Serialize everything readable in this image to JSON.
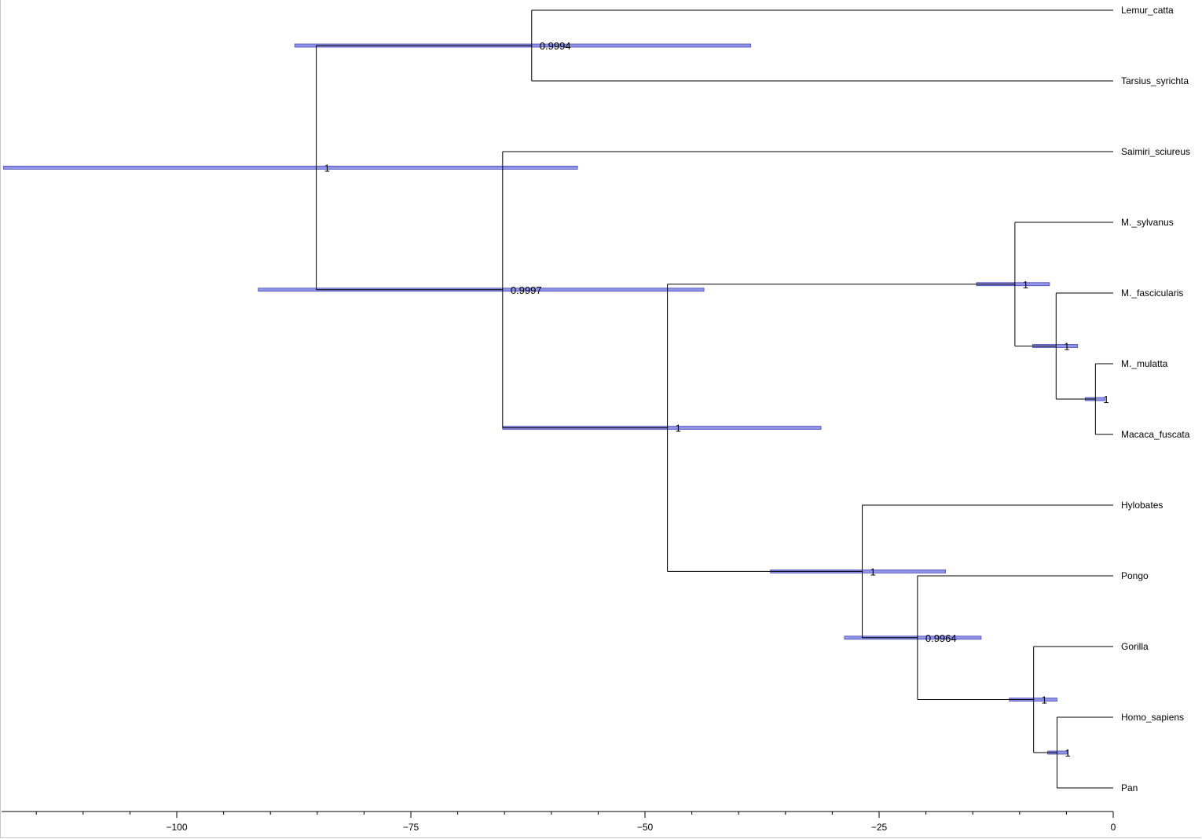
{
  "chart_data": {
    "type": "phylogenetic-tree",
    "x_axis": {
      "ticks": [
        -100,
        -75,
        -50,
        -25,
        0
      ],
      "tick_labels": [
        "−100",
        "−75",
        "−50",
        "−25",
        "0"
      ],
      "minor_step": 5,
      "range": [
        -118.7,
        0
      ]
    },
    "tips": [
      {
        "id": "t1",
        "name": "Lemur_catta"
      },
      {
        "id": "t2",
        "name": "Tarsius_syrichta"
      },
      {
        "id": "t3",
        "name": "Saimiri_sciureus"
      },
      {
        "id": "t4",
        "name": "M._sylvanus"
      },
      {
        "id": "t5",
        "name": "M._fascicularis"
      },
      {
        "id": "t6",
        "name": "M._mulatta"
      },
      {
        "id": "t7",
        "name": "Macaca_fuscata"
      },
      {
        "id": "t8",
        "name": "Hylobates"
      },
      {
        "id": "t9",
        "name": "Pongo"
      },
      {
        "id": "t10",
        "name": "Gorilla"
      },
      {
        "id": "t11",
        "name": "Homo_sapiens"
      },
      {
        "id": "t12",
        "name": "Pan"
      }
    ],
    "nodes": [
      {
        "id": "root",
        "age": -85.1,
        "hpd": [
          -118.5,
          -57.2
        ],
        "support": "1",
        "children": [
          "n1",
          "n2"
        ]
      },
      {
        "id": "n1",
        "age": -62.1,
        "hpd": [
          -87.4,
          -38.7
        ],
        "support": "0.9994",
        "children": [
          "t1",
          "t2"
        ]
      },
      {
        "id": "n2",
        "age": -65.2,
        "hpd": [
          -91.3,
          -43.7
        ],
        "support": "0.9997",
        "children": [
          "t3",
          "n3"
        ]
      },
      {
        "id": "n3",
        "age": -47.6,
        "hpd": [
          -65.2,
          -31.2
        ],
        "support": "1",
        "children": [
          "n4",
          "n7"
        ]
      },
      {
        "id": "n4",
        "age": -10.5,
        "hpd": [
          -14.6,
          -6.8
        ],
        "support": "1",
        "children": [
          "t4",
          "n5"
        ]
      },
      {
        "id": "n5",
        "age": -6.1,
        "hpd": [
          -8.6,
          -3.8
        ],
        "support": "1",
        "children": [
          "t5",
          "n6"
        ]
      },
      {
        "id": "n6",
        "age": -1.9,
        "hpd": [
          -3.0,
          -0.9
        ],
        "support": "1",
        "children": [
          "t6",
          "t7"
        ]
      },
      {
        "id": "n7",
        "age": -26.8,
        "hpd": [
          -36.6,
          -17.9
        ],
        "support": "1",
        "children": [
          "t8",
          "n8"
        ]
      },
      {
        "id": "n8",
        "age": -20.9,
        "hpd": [
          -28.7,
          -14.1
        ],
        "support": "0.9964",
        "children": [
          "t9",
          "n9"
        ]
      },
      {
        "id": "n9",
        "age": -8.5,
        "hpd": [
          -11.1,
          -6.0
        ],
        "support": "1",
        "children": [
          "t10",
          "n10"
        ]
      },
      {
        "id": "n10",
        "age": -6.0,
        "hpd": [
          -7.0,
          -4.9
        ],
        "support": "1",
        "children": [
          "t11",
          "t12"
        ]
      }
    ],
    "root": "root",
    "colors": {
      "hpd_fill": "#8f92e6",
      "hpd_stroke": "#4a4db8",
      "branch": "#000000",
      "axis": "#000000"
    }
  }
}
